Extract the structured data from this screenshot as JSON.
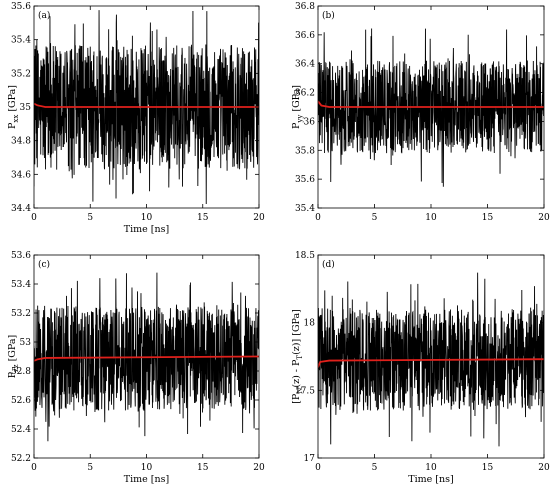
{
  "chart_data": [
    {
      "type": "line",
      "panel_label": "(a)",
      "xlabel": "Time [ns]",
      "ylabel_main": "P",
      "ylabel_sub": "xx",
      "ylabel_unit": " [GPa]",
      "xlim": [
        0,
        20
      ],
      "ylim": [
        34.4,
        35.6
      ],
      "xticks": [
        0,
        5,
        10,
        15,
        20
      ],
      "yticks": [
        34.4,
        34.6,
        34.8,
        35,
        35.2,
        35.4,
        35.6
      ],
      "grid": false,
      "series": [
        {
          "color": "#000000",
          "style": "fluctuating",
          "center": 35.0,
          "band": [
            34.63,
            35.37
          ],
          "extremes": [
            34.42,
            35.58
          ]
        },
        {
          "color": "#e0201b",
          "style": "running-average",
          "x": [
            0,
            0.3,
            1,
            20
          ],
          "values": [
            35.02,
            35.01,
            35.0,
            35.0
          ]
        }
      ]
    },
    {
      "type": "line",
      "panel_label": "(b)",
      "xlabel": "",
      "ylabel_main": "P",
      "ylabel_sub": "yy",
      "ylabel_unit": " [GPa]",
      "xlim": [
        0,
        20
      ],
      "ylim": [
        35.4,
        36.8
      ],
      "xticks": [
        0,
        5,
        10,
        15,
        20
      ],
      "yticks": [
        35.4,
        35.6,
        35.8,
        36,
        36.2,
        36.4,
        36.6,
        36.8
      ],
      "grid": false,
      "series": [
        {
          "color": "#000000",
          "style": "fluctuating",
          "center": 36.1,
          "band": [
            35.78,
            36.42
          ],
          "extremes": [
            35.52,
            36.68
          ]
        },
        {
          "color": "#e0201b",
          "style": "running-average",
          "x": [
            0,
            0.3,
            1,
            20
          ],
          "values": [
            36.14,
            36.11,
            36.1,
            36.1
          ]
        }
      ]
    },
    {
      "type": "line",
      "panel_label": "(c)",
      "xlabel": "Time [ns]",
      "ylabel_main": "P",
      "ylabel_sub": "zz",
      "ylabel_unit": " [GPa]",
      "xlim": [
        0,
        20
      ],
      "ylim": [
        52.2,
        53.6
      ],
      "xticks": [
        0,
        5,
        10,
        15,
        20
      ],
      "yticks": [
        52.2,
        52.4,
        52.6,
        52.8,
        53,
        53.2,
        53.4,
        53.6
      ],
      "grid": false,
      "series": [
        {
          "color": "#000000",
          "style": "fluctuating",
          "center": 52.9,
          "band": [
            52.52,
            53.25
          ],
          "extremes": [
            52.28,
            53.48
          ]
        },
        {
          "color": "#e0201b",
          "style": "running-average",
          "x": [
            0,
            0.3,
            1,
            20
          ],
          "values": [
            52.87,
            52.88,
            52.89,
            52.9
          ]
        }
      ]
    },
    {
      "type": "line",
      "panel_label": "(d)",
      "xlabel": "Time [ns]",
      "ylabel_main": "[P",
      "ylabel_sub": "N",
      "ylabel_mid": "(z) - P",
      "ylabel_sub2": "T",
      "ylabel_unit": "(z)] [GPa]",
      "xlim": [
        0,
        20
      ],
      "ylim": [
        17,
        18.5
      ],
      "xticks": [
        0,
        5,
        10,
        15,
        20
      ],
      "yticks": [
        17,
        17.5,
        18,
        18.5
      ],
      "grid": false,
      "series": [
        {
          "color": "#000000",
          "style": "fluctuating",
          "center": 17.73,
          "band": [
            17.35,
            18.1
          ],
          "extremes": [
            17.08,
            18.42
          ]
        },
        {
          "color": "#e0201b",
          "style": "running-average",
          "x": [
            0,
            0.2,
            1,
            20
          ],
          "values": [
            17.67,
            17.71,
            17.72,
            17.73
          ]
        }
      ]
    }
  ]
}
